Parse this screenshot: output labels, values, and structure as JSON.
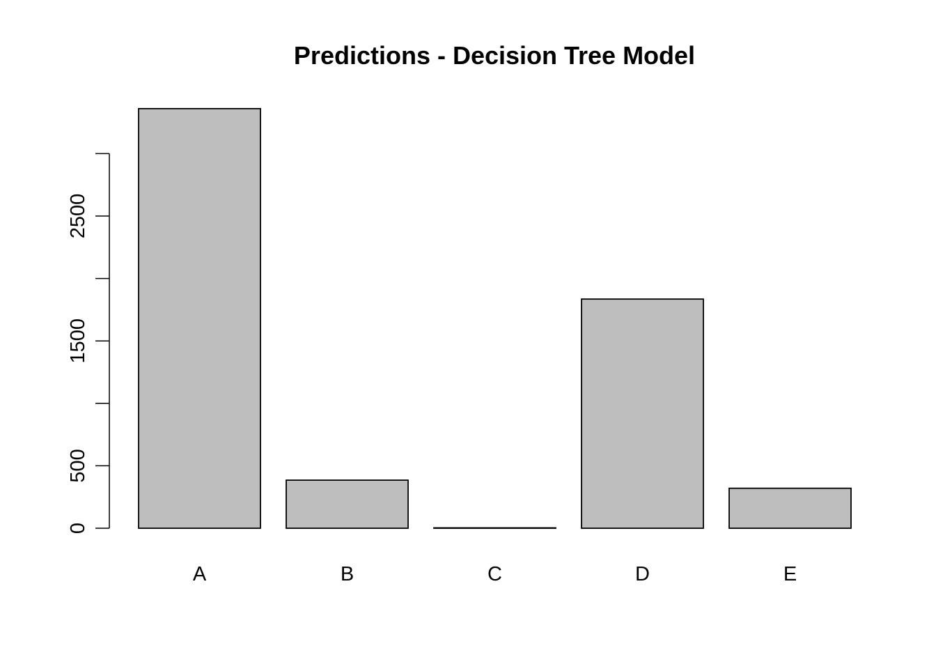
{
  "chart_data": {
    "type": "bar",
    "title": "Predictions - Decision Tree Model",
    "xlabel": "",
    "ylabel": "",
    "categories": [
      "A",
      "B",
      "C",
      "D",
      "E"
    ],
    "values": [
      3360,
      385,
      3,
      1835,
      320
    ],
    "ylim": [
      0,
      3360
    ],
    "yticks": [
      0,
      500,
      1000,
      1500,
      2000,
      2500,
      3000
    ],
    "ytick_labels": [
      "0",
      "500",
      "",
      "1500",
      "",
      "2500",
      ""
    ],
    "bar_color": "#bebebe",
    "border_color": "#000000",
    "grid": false,
    "legend": "none"
  }
}
